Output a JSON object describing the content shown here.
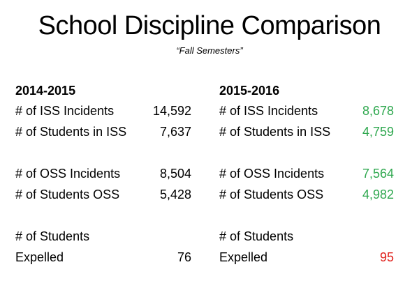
{
  "title": "School Discipline Comparison",
  "subtitle": "“Fall Semesters”",
  "columns": [
    {
      "year": "2014-2015",
      "iss_incidents": {
        "label": "# of ISS Incidents",
        "value": "14,592"
      },
      "iss_students": {
        "label": "# of Students in ISS",
        "value": "7,637"
      },
      "oss_incidents": {
        "label": "# of OSS Incidents",
        "value": "8,504"
      },
      "oss_students": {
        "label": "# of Students OSS",
        "value": "5,428"
      },
      "expelled": {
        "label_line1": "# of Students",
        "label_line2": "Expelled",
        "value": "76"
      }
    },
    {
      "year": "2015-2016",
      "iss_incidents": {
        "label": "# of ISS Incidents",
        "value": "8,678",
        "color": "#2fa84f"
      },
      "iss_students": {
        "label": "# of Students in ISS",
        "value": "4,759",
        "color": "#2fa84f"
      },
      "oss_incidents": {
        "label": "# of OSS Incidents",
        "value": "7,564",
        "color": "#2fa84f"
      },
      "oss_students": {
        "label": "# of Students OSS",
        "value": "4,982",
        "color": "#2fa84f"
      },
      "expelled": {
        "label_line1": "# of Students",
        "label_line2": "Expelled",
        "value": "95",
        "color": "#e0201b"
      }
    }
  ]
}
